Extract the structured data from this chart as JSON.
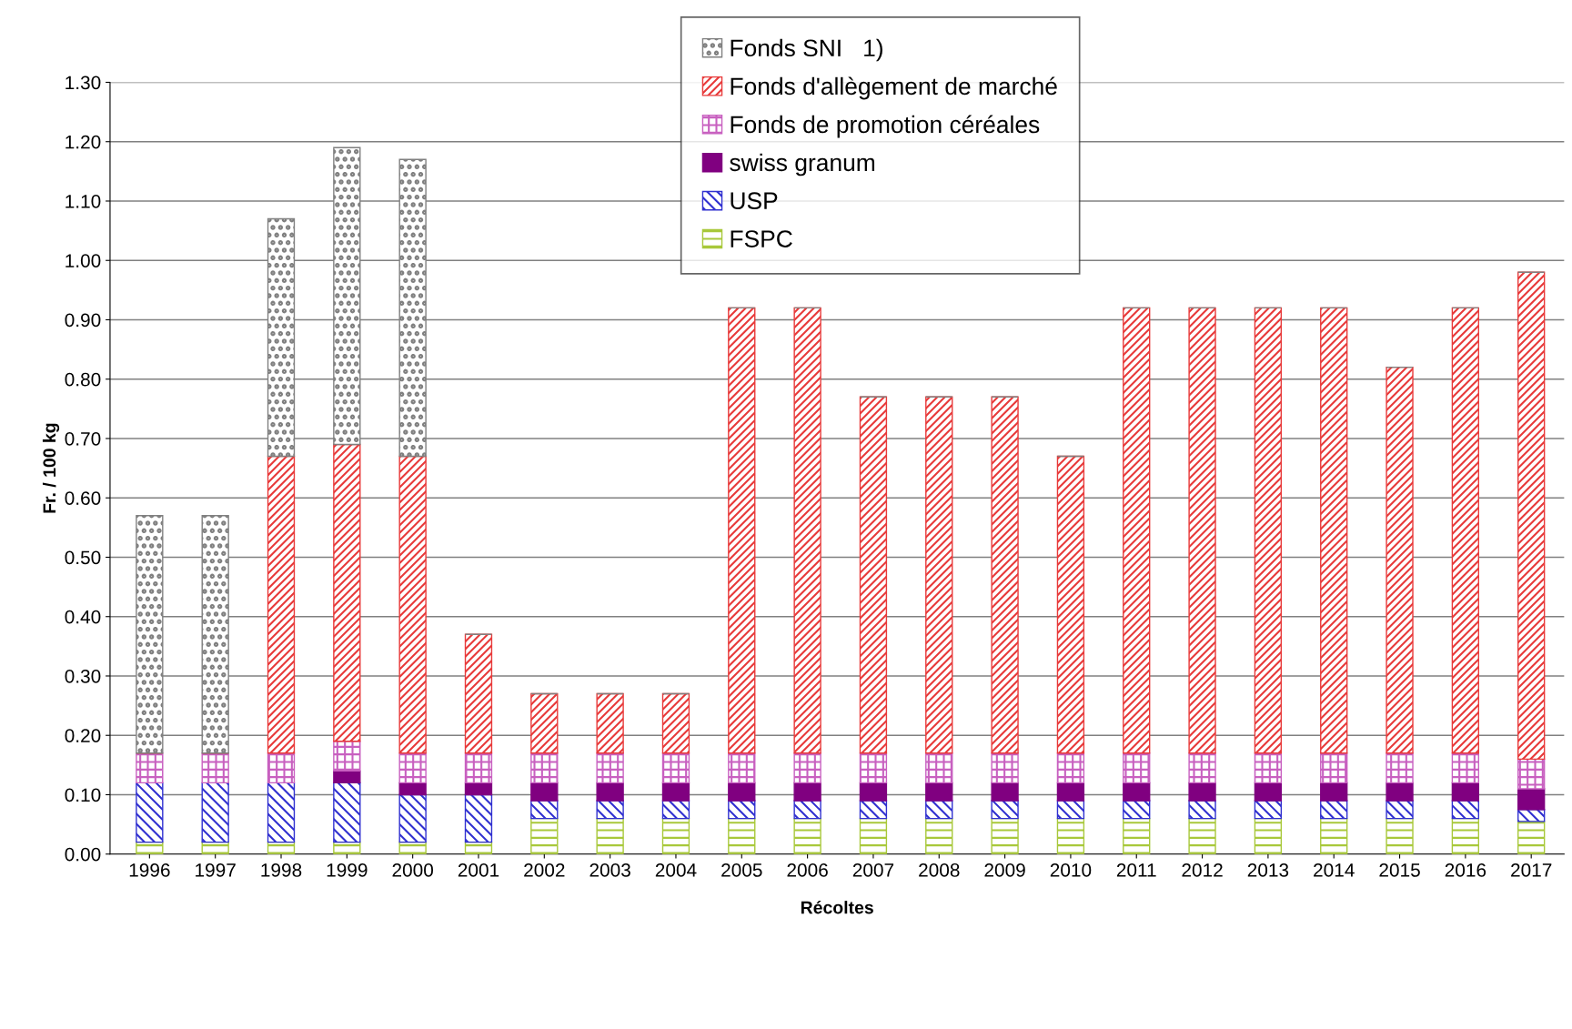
{
  "chart_data": {
    "type": "bar",
    "stacked": true,
    "xlabel": "Récoltes",
    "ylabel": "Fr. / 100 kg",
    "categories": [
      "1996",
      "1997",
      "1998",
      "1999",
      "2000",
      "2001",
      "2002",
      "2003",
      "2004",
      "2005",
      "2006",
      "2007",
      "2008",
      "2009",
      "2010",
      "2011",
      "2012",
      "2013",
      "2014",
      "2015",
      "2016",
      "2017"
    ],
    "series": [
      {
        "name": "FSPC",
        "color": "#a8c83a",
        "values": [
          0.02,
          0.02,
          0.02,
          0.02,
          0.02,
          0.02,
          0.06,
          0.06,
          0.06,
          0.06,
          0.06,
          0.06,
          0.06,
          0.06,
          0.06,
          0.06,
          0.06,
          0.06,
          0.06,
          0.06,
          0.06,
          0.055
        ]
      },
      {
        "name": "USP",
        "color": "#3030d0",
        "values": [
          0.1,
          0.1,
          0.1,
          0.1,
          0.08,
          0.08,
          0.03,
          0.03,
          0.03,
          0.03,
          0.03,
          0.03,
          0.03,
          0.03,
          0.03,
          0.03,
          0.03,
          0.03,
          0.03,
          0.03,
          0.03,
          0.02
        ]
      },
      {
        "name": "swiss granum",
        "color": "#800080",
        "values": [
          0,
          0,
          0,
          0.02,
          0.02,
          0.02,
          0.03,
          0.03,
          0.03,
          0.03,
          0.03,
          0.03,
          0.03,
          0.03,
          0.03,
          0.03,
          0.03,
          0.03,
          0.03,
          0.03,
          0.03,
          0.035
        ]
      },
      {
        "name": "Fonds de promotion céréales",
        "color": "#c860c0",
        "values": [
          0.05,
          0.05,
          0.05,
          0.05,
          0.05,
          0.05,
          0.05,
          0.05,
          0.05,
          0.05,
          0.05,
          0.05,
          0.05,
          0.05,
          0.05,
          0.05,
          0.05,
          0.05,
          0.05,
          0.05,
          0.05,
          0.05
        ]
      },
      {
        "name": "Fonds d'allègement de marché",
        "color": "#e83a3a",
        "values": [
          0,
          0,
          0.5,
          0.5,
          0.5,
          0.2,
          0.1,
          0.1,
          0.1,
          0.75,
          0.75,
          0.6,
          0.6,
          0.6,
          0.5,
          0.75,
          0.75,
          0.75,
          0.75,
          0.65,
          0.75,
          0.82
        ]
      },
      {
        "name": "Fonds SNI   1)",
        "color": "#808080",
        "values": [
          0.4,
          0.4,
          0.4,
          0.5,
          0.5,
          0,
          0,
          0,
          0,
          0,
          0,
          0,
          0,
          0,
          0,
          0,
          0,
          0,
          0,
          0,
          0,
          0
        ]
      }
    ],
    "ylim": [
      0,
      1.3
    ],
    "yticks": [
      {
        "value": 0,
        "label": "0.00"
      },
      {
        "value": 0.1,
        "label": "0.10"
      },
      {
        "value": 0.2,
        "label": "0.20"
      },
      {
        "value": 0.3,
        "label": "0.30"
      },
      {
        "value": 0.4,
        "label": "0.40"
      },
      {
        "value": 0.5,
        "label": "0.50"
      },
      {
        "value": 0.6,
        "label": "0.60"
      },
      {
        "value": 0.7,
        "label": "0.70"
      },
      {
        "value": 0.8,
        "label": "0.80"
      },
      {
        "value": 0.9,
        "label": "0.90"
      },
      {
        "value": 1.0,
        "label": "1.00"
      },
      {
        "value": 1.1,
        "label": "1.10"
      },
      {
        "value": 1.2,
        "label": "1.20"
      },
      {
        "value": 1.3,
        "label": "1.30"
      }
    ],
    "grid": "y",
    "legend": "top"
  }
}
